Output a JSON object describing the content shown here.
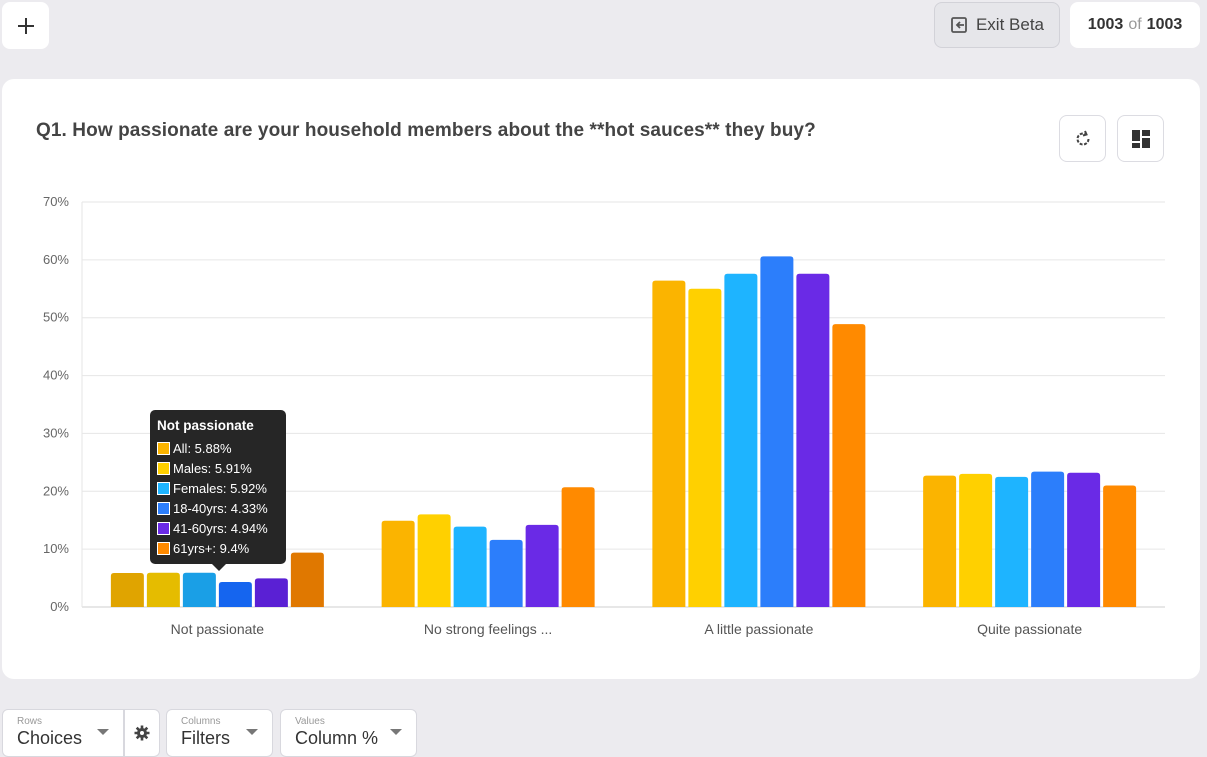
{
  "header": {
    "exit_label": "Exit Beta",
    "count_current": "1003",
    "count_of": "of",
    "count_total": "1003"
  },
  "card": {
    "question": "Q1. How passionate are your household members about the **hot sauces** they buy?"
  },
  "tooltip": {
    "title": "Not passionate",
    "rows": [
      "All: 5.88%",
      "Males: 5.91%",
      "Females: 5.92%",
      "18-40yrs: 4.33%",
      "41-60yrs: 4.94%",
      "61yrs+: 9.4%"
    ]
  },
  "controls": {
    "rows_label": "Rows",
    "rows_value": "Choices",
    "columns_label": "Columns",
    "columns_value": "Filters",
    "values_label": "Values",
    "values_value": "Column %"
  },
  "colors": {
    "series": [
      "#fbb400",
      "#ffd000",
      "#1eb4ff",
      "#2c7efb",
      "#6a2ae6",
      "#ff8a00"
    ],
    "series_hover": [
      "#e0a400",
      "#e5bc00",
      "#1a9fe6",
      "#1565ef",
      "#5a20d4",
      "#e07800"
    ]
  },
  "chart_data": {
    "type": "bar",
    "categories": [
      "Not passionate",
      "No strong feelings ...",
      "A little passionate",
      "Quite passionate"
    ],
    "series": [
      {
        "name": "All",
        "values": [
          5.88,
          14.9,
          56.4,
          22.7
        ]
      },
      {
        "name": "Males",
        "values": [
          5.91,
          16.0,
          55.0,
          23.0
        ]
      },
      {
        "name": "Females",
        "values": [
          5.92,
          13.9,
          57.6,
          22.5
        ]
      },
      {
        "name": "18-40yrs",
        "values": [
          4.33,
          11.6,
          60.6,
          23.4
        ]
      },
      {
        "name": "41-60yrs",
        "values": [
          4.94,
          14.2,
          57.6,
          23.2
        ]
      },
      {
        "name": "61yrs+",
        "values": [
          9.4,
          20.7,
          48.9,
          21.0
        ]
      }
    ],
    "yticks": [
      "0%",
      "10%",
      "20%",
      "30%",
      "40%",
      "50%",
      "60%",
      "70%"
    ],
    "ylim": [
      0,
      70
    ],
    "grid": true,
    "hovered_category": 0
  }
}
